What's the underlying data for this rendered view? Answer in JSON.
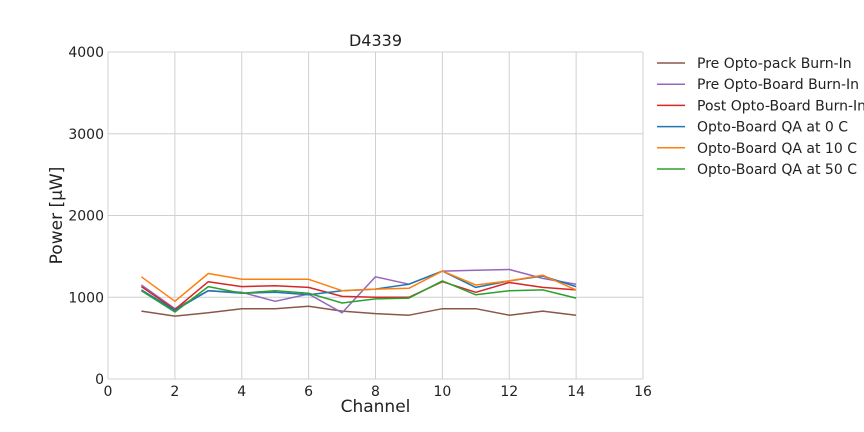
{
  "chart_data": {
    "type": "line",
    "title": "D4339",
    "xlabel": "Channel",
    "ylabel": "Power [μW]",
    "xlim": [
      0,
      16
    ],
    "ylim": [
      0,
      4000
    ],
    "xticks": [
      0,
      2,
      4,
      6,
      8,
      10,
      12,
      14,
      16
    ],
    "yticks": [
      0,
      1000,
      2000,
      3000,
      4000
    ],
    "grid": true,
    "legend_position": "outside-right",
    "x": [
      1,
      2,
      3,
      4,
      5,
      6,
      7,
      8,
      9,
      10,
      11,
      12,
      13,
      14
    ],
    "series": [
      {
        "name": "Pre Opto-pack Burn-In",
        "color": "#8c564b",
        "values": [
          830,
          770,
          810,
          860,
          860,
          890,
          830,
          800,
          780,
          860,
          860,
          780,
          830,
          780
        ]
      },
      {
        "name": "Pre Opto-Board Burn-In",
        "color": "#9467bd",
        "values": [
          1150,
          860,
          1080,
          1060,
          950,
          1040,
          810,
          1250,
          1160,
          1320,
          1330,
          1340,
          1230,
          1160
        ]
      },
      {
        "name": "Post Opto-Board Burn-In",
        "color": "#d62728",
        "values": [
          1130,
          850,
          1190,
          1130,
          1140,
          1120,
          1010,
          1000,
          1000,
          1190,
          1060,
          1180,
          1120,
          1090
        ]
      },
      {
        "name": "Opto-Board QA at 0 C",
        "color": "#1f77b4",
        "values": [
          1090,
          840,
          1080,
          1050,
          1060,
          1030,
          1080,
          1100,
          1160,
          1320,
          1120,
          1200,
          1260,
          1130
        ]
      },
      {
        "name": "Opto-Board QA at 10 C",
        "color": "#ff7f0e",
        "values": [
          1250,
          950,
          1290,
          1220,
          1220,
          1220,
          1080,
          1100,
          1110,
          1320,
          1150,
          1200,
          1270,
          1090
        ]
      },
      {
        "name": "Opto-Board QA at 50 C",
        "color": "#2ca02c",
        "values": [
          1080,
          820,
          1130,
          1050,
          1080,
          1050,
          930,
          980,
          990,
          1200,
          1030,
          1080,
          1090,
          990
        ]
      }
    ]
  }
}
